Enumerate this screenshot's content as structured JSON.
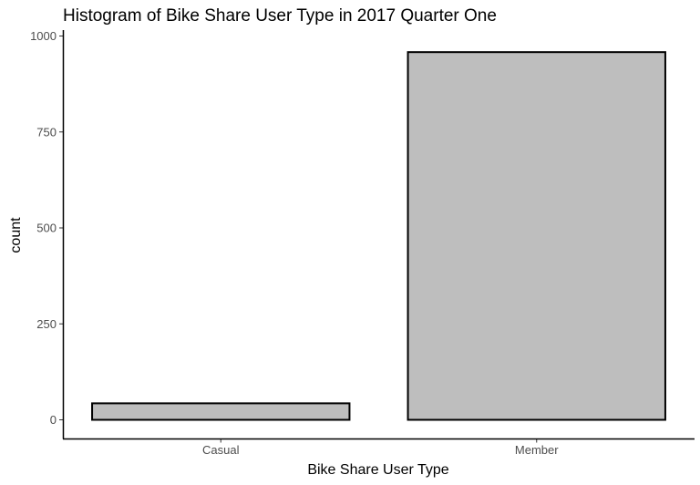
{
  "chart_data": {
    "type": "bar",
    "title": "Histogram of Bike Share User Type in 2017 Quarter One",
    "xlabel": "Bike Share User Type",
    "ylabel": "count",
    "categories": [
      "Casual",
      "Member"
    ],
    "values": [
      43,
      958
    ],
    "ylim": [
      -50,
      1010
    ],
    "yticks": [
      0,
      250,
      500,
      750,
      1000
    ],
    "grid": false,
    "legend": "none",
    "bar_fill": "#bebebe",
    "bar_stroke": "#000000"
  }
}
